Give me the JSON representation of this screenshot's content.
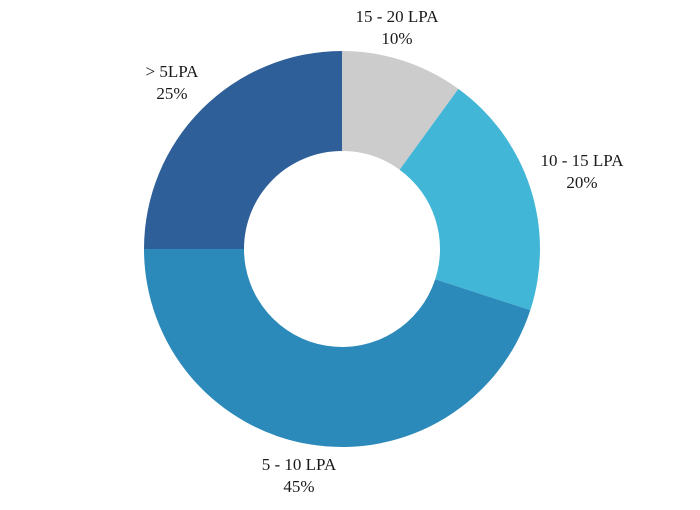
{
  "chart_data": {
    "type": "pie",
    "donut": true,
    "title": "",
    "slices": [
      {
        "label": "15 - 20 LPA",
        "value": 10,
        "value_label": "10%",
        "color": "#cccccc"
      },
      {
        "label": "10 - 15 LPA",
        "value": 20,
        "value_label": "20%",
        "color": "#41b6d6"
      },
      {
        "label": "5 - 10 LPA",
        "value": 45,
        "value_label": "45%",
        "color": "#2c8aba"
      },
      {
        "label": "> 5LPA",
        "value": 25,
        "value_label": "25%",
        "color": "#2e5f98"
      }
    ],
    "legend": "none"
  }
}
